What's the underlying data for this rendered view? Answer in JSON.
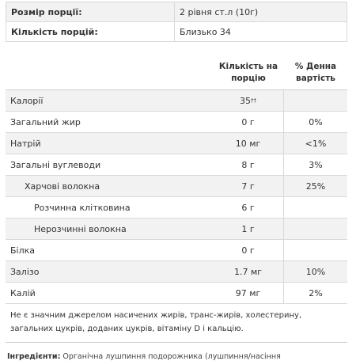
{
  "serving": [
    {
      "label": "Розмір порції:",
      "value": "2 рівня ст.л (10г)"
    },
    {
      "label": "Кількість порцій:",
      "value": "Близько 34"
    }
  ],
  "facts": {
    "header_amount": "Кількість на порцію",
    "header_dv": "% Денна вартість",
    "rows": [
      {
        "name": "Калорії",
        "amount": "35",
        "sup": "††",
        "dv": "",
        "level": 0
      },
      {
        "name": "Загальний жир",
        "amount": "0 г",
        "sup": "",
        "dv": "0%",
        "level": 0
      },
      {
        "name": "Натрій",
        "amount": "10 мг",
        "sup": "",
        "dv": "<1%",
        "level": 0
      },
      {
        "name": "Загальні вуглеводи",
        "amount": "8 г",
        "sup": "",
        "dv": "3%",
        "level": 0
      },
      {
        "name": "Харчові волокна",
        "amount": "7 г",
        "sup": "",
        "dv": "25%",
        "level": 1
      },
      {
        "name": "Розчинна клітковина",
        "amount": "6 г",
        "sup": "",
        "dv": "",
        "level": 2
      },
      {
        "name": "Нерозчинні волокна",
        "amount": "1 г",
        "sup": "",
        "dv": "",
        "level": 2
      },
      {
        "name": "Білка",
        "amount": "0 г",
        "sup": "",
        "dv": "",
        "level": 0
      },
      {
        "name": "Залізо",
        "amount": "1.7 мг",
        "sup": "",
        "dv": "10%",
        "level": 0
      },
      {
        "name": "Калій",
        "amount": "97 мг",
        "sup": "",
        "dv": "2%",
        "level": 0
      }
    ]
  },
  "note": "Не є значним джерелом насичених жирів, транс-жирів, холестерину, загальних цукрів, доданих цукрів, вітаміну D і кальцію.",
  "ingredients": {
    "label": "Інгредієнти:",
    "text": "Органічна лушпиння подорожника (лушпиння/насіння"
  }
}
